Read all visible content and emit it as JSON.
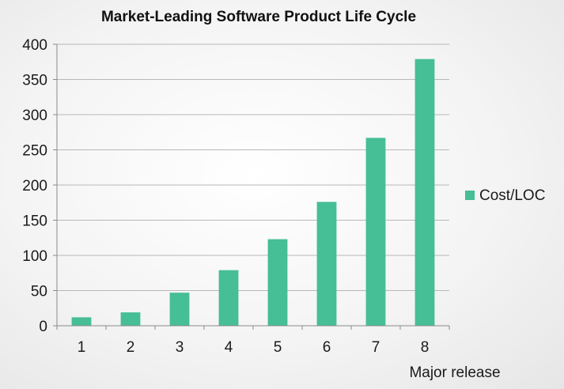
{
  "chart_data": {
    "type": "bar",
    "title": "Market-Leading Software Product Life Cycle",
    "xlabel": "Major release",
    "ylabel": "",
    "categories": [
      "1",
      "2",
      "3",
      "4",
      "5",
      "6",
      "7",
      "8"
    ],
    "series": [
      {
        "name": "Cost/LOC",
        "values": [
          12,
          19,
          47,
          79,
          123,
          176,
          267,
          379
        ]
      }
    ],
    "ylim": [
      0,
      400
    ],
    "yticks": [
      "0",
      "50",
      "100",
      "150",
      "200",
      "250",
      "300",
      "350",
      "400"
    ],
    "grid": true,
    "legend_position": "right",
    "colors": {
      "bar": "#46be96",
      "grid": "#b8b8b8",
      "axis": "#8a8a8a"
    }
  }
}
